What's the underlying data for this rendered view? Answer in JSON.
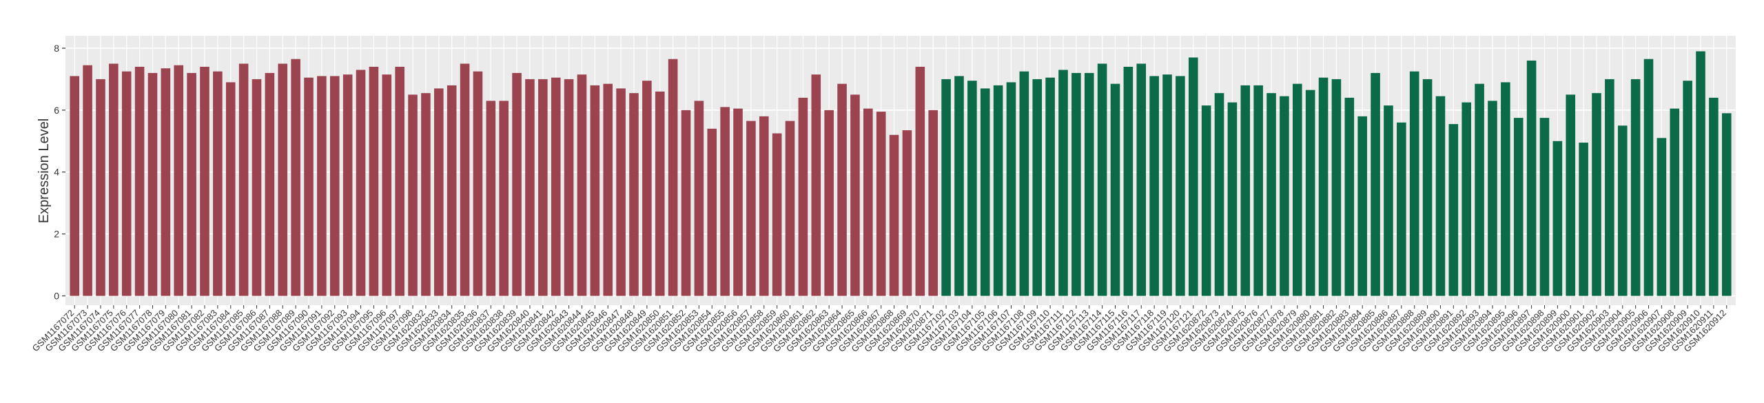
{
  "chart_data": {
    "type": "bar",
    "y_label": "Expression Level",
    "ylim": [
      -0.3,
      8.4
    ],
    "yticks": [
      0,
      2,
      4,
      6,
      8
    ],
    "grid": true,
    "categories": [
      "GSM1167072",
      "GSM1167073",
      "GSM1167074",
      "GSM1167075",
      "GSM1167076",
      "GSM1167077",
      "GSM1167078",
      "GSM1167079",
      "GSM1167080",
      "GSM1167081",
      "GSM1167082",
      "GSM1167083",
      "GSM1167084",
      "GSM1167085",
      "GSM1167086",
      "GSM1167087",
      "GSM1167088",
      "GSM1167089",
      "GSM1167090",
      "GSM1167091",
      "GSM1167092",
      "GSM1167093",
      "GSM1167094",
      "GSM1167095",
      "GSM1167096",
      "GSM1167097",
      "GSM1167098",
      "GSM1620832",
      "GSM1620833",
      "GSM1620834",
      "GSM1620835",
      "GSM1620836",
      "GSM1620837",
      "GSM1620838",
      "GSM1620839",
      "GSM1620840",
      "GSM1620841",
      "GSM1620842",
      "GSM1620843",
      "GSM1620844",
      "GSM1620845",
      "GSM1620846",
      "GSM1620847",
      "GSM1620848",
      "GSM1620849",
      "GSM1620850",
      "GSM1620851",
      "GSM1620852",
      "GSM1620853",
      "GSM1620854",
      "GSM1620855",
      "GSM1620856",
      "GSM1620857",
      "GSM1620858",
      "GSM1620859",
      "GSM1620860",
      "GSM1620861",
      "GSM1620862",
      "GSM1620863",
      "GSM1620864",
      "GSM1620865",
      "GSM1620866",
      "GSM1620867",
      "GSM1620868",
      "GSM1620869",
      "GSM1620870",
      "GSM1620871",
      "GSM1167102",
      "GSM1167103",
      "GSM1167104",
      "GSM1167105",
      "GSM1167106",
      "GSM1167107",
      "GSM1167108",
      "GSM1167109",
      "GSM1167110",
      "GSM1167111",
      "GSM1167112",
      "GSM1167113",
      "GSM1167114",
      "GSM1167115",
      "GSM1167116",
      "GSM1167117",
      "GSM1167118",
      "GSM1167119",
      "GSM1167120",
      "GSM1167121",
      "GSM1620872",
      "GSM1620873",
      "GSM1620874",
      "GSM1620875",
      "GSM1620876",
      "GSM1620877",
      "GSM1620878",
      "GSM1620879",
      "GSM1620880",
      "GSM1620881",
      "GSM1620882",
      "GSM1620883",
      "GSM1620884",
      "GSM1620885",
      "GSM1620886",
      "GSM1620887",
      "GSM1620888",
      "GSM1620889",
      "GSM1620890",
      "GSM1620891",
      "GSM1620892",
      "GSM1620893",
      "GSM1620894",
      "GSM1620895",
      "GSM1620896",
      "GSM1620897",
      "GSM1620898",
      "GSM1620899",
      "GSM1620900",
      "GSM1620901",
      "GSM1620902",
      "GSM1620903",
      "GSM1620904",
      "GSM1620905",
      "GSM1620906",
      "GSM1620907",
      "GSM1620908",
      "GSM1620909",
      "GSM1620910",
      "GSM1620911",
      "GSM1620912"
    ],
    "series": [
      {
        "color": "#9b4450",
        "values": [
          7.1,
          7.45,
          7.0,
          7.5,
          7.25,
          7.4,
          7.2,
          7.35,
          7.45,
          7.2,
          7.4,
          7.25,
          6.9,
          7.5,
          7.0,
          7.2,
          7.5,
          7.65,
          7.05,
          7.1,
          7.1,
          7.15,
          7.3,
          7.4,
          7.15,
          7.4,
          6.5,
          6.55,
          6.7,
          6.8,
          7.5,
          7.25,
          6.3,
          6.3,
          7.2,
          7.0,
          7.0,
          7.05,
          7.0,
          7.15,
          6.8,
          6.85,
          6.7,
          6.55,
          6.95,
          6.6,
          7.65,
          6.0,
          6.3,
          5.4,
          6.1,
          6.05,
          5.65,
          5.8,
          5.25,
          5.65,
          6.4,
          7.15,
          6.0,
          6.85,
          6.5,
          6.05,
          5.95,
          5.2,
          5.35,
          7.4,
          6.0,
          null,
          null,
          null,
          null,
          null,
          null,
          null,
          null,
          null,
          null,
          null,
          null,
          null,
          null,
          null,
          null,
          null,
          null,
          null,
          null,
          null,
          null,
          null,
          null,
          null,
          null,
          null,
          null,
          null,
          null,
          null,
          null,
          null,
          null,
          null,
          null,
          null,
          null,
          null,
          null,
          null,
          null,
          null,
          null,
          null,
          null,
          null,
          null,
          null,
          null,
          null,
          null,
          null,
          null,
          null,
          null,
          null,
          null,
          null,
          null,
          null
        ]
      },
      {
        "color": "#0b6b48",
        "values": [
          null,
          null,
          null,
          null,
          null,
          null,
          null,
          null,
          null,
          null,
          null,
          null,
          null,
          null,
          null,
          null,
          null,
          null,
          null,
          null,
          null,
          null,
          null,
          null,
          null,
          null,
          null,
          null,
          null,
          null,
          null,
          null,
          null,
          null,
          null,
          null,
          null,
          null,
          null,
          null,
          null,
          null,
          null,
          null,
          null,
          null,
          null,
          null,
          null,
          null,
          null,
          null,
          null,
          null,
          null,
          null,
          null,
          null,
          null,
          null,
          null,
          null,
          null,
          null,
          null,
          null,
          null,
          7.0,
          7.1,
          6.95,
          6.7,
          6.8,
          6.9,
          7.25,
          7.0,
          7.05,
          7.3,
          7.2,
          7.2,
          7.5,
          6.85,
          7.4,
          7.5,
          7.1,
          7.15,
          7.1,
          7.7,
          6.15,
          6.55,
          6.25,
          6.8,
          6.8,
          6.55,
          6.45,
          6.85,
          6.65,
          7.05,
          7.0,
          6.4,
          5.8,
          7.2,
          6.15,
          5.6,
          7.25,
          7.0,
          6.45,
          5.55,
          6.25,
          6.85,
          6.3,
          6.9,
          5.75,
          7.6,
          5.75,
          5.0,
          6.5,
          4.95,
          6.55,
          7.0,
          5.5,
          7.0,
          7.65,
          5.1,
          6.05,
          6.95,
          7.9,
          6.4,
          5.9
        ]
      }
    ]
  }
}
